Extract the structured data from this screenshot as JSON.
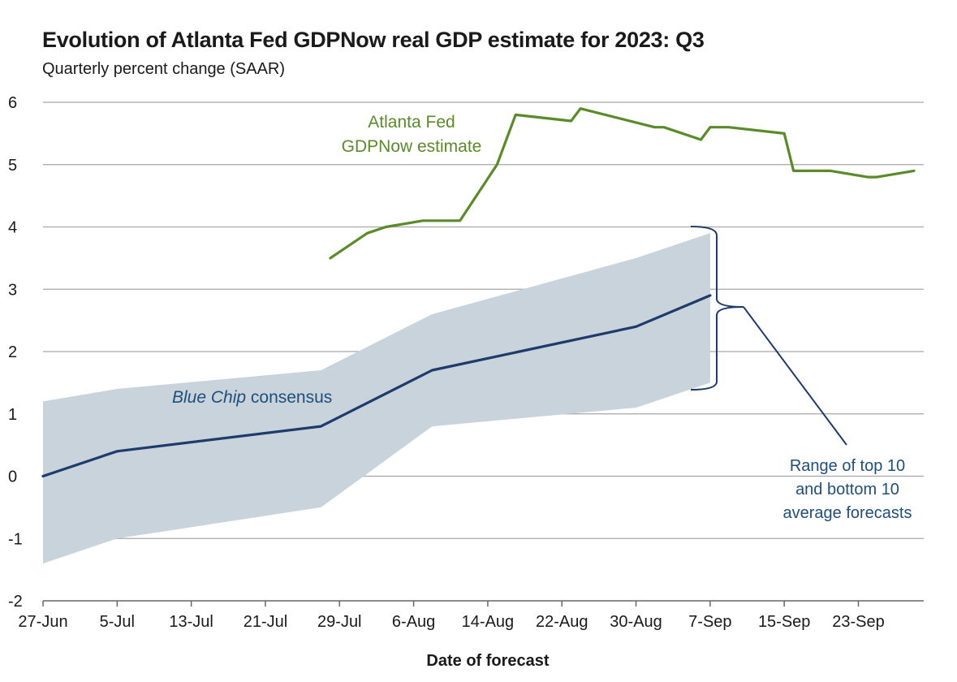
{
  "chart_data": {
    "type": "line",
    "title": "Evolution of Atlanta Fed GDPNow real GDP estimate for 2023: Q3",
    "subtitle": "Quarterly percent change (SAAR)",
    "xlabel": "Date of forecast",
    "ylabel": "",
    "ylim": [
      -2,
      6
    ],
    "yticks": [
      -2,
      -1,
      0,
      1,
      2,
      3,
      4,
      5,
      6
    ],
    "xlim": [
      0,
      94
    ],
    "xticks": [
      {
        "day": 0,
        "label": "27-Jun"
      },
      {
        "day": 8,
        "label": "5-Jul"
      },
      {
        "day": 16,
        "label": "13-Jul"
      },
      {
        "day": 24,
        "label": "21-Jul"
      },
      {
        "day": 32,
        "label": "29-Jul"
      },
      {
        "day": 40,
        "label": "6-Aug"
      },
      {
        "day": 48,
        "label": "14-Aug"
      },
      {
        "day": 56,
        "label": "22-Aug"
      },
      {
        "day": 64,
        "label": "30-Aug"
      },
      {
        "day": 72,
        "label": "7-Sep"
      },
      {
        "day": 80,
        "label": "15-Sep"
      },
      {
        "day": 88,
        "label": "23-Sep"
      }
    ],
    "grid": true,
    "series": [
      {
        "name": "Atlanta Fed GDPNow estimate",
        "color": "#5b8a2a",
        "x": [
          31,
          35,
          37,
          41,
          45,
          49,
          51,
          57,
          58,
          66,
          67,
          71,
          72,
          74,
          80,
          81,
          84,
          85,
          89,
          90,
          94
        ],
        "y": [
          3.5,
          3.9,
          4.0,
          4.1,
          4.1,
          5.0,
          5.8,
          5.7,
          5.9,
          5.6,
          5.6,
          5.4,
          5.6,
          5.6,
          5.5,
          4.9,
          4.9,
          4.9,
          4.8,
          4.8,
          4.9
        ]
      },
      {
        "name": "Blue Chip consensus",
        "color": "#1f3b6b",
        "x": [
          0,
          8,
          30,
          42,
          64,
          72
        ],
        "y": [
          0.0,
          0.4,
          0.8,
          1.7,
          2.4,
          2.9
        ]
      }
    ],
    "band": {
      "name": "Range of top 10 and bottom 10 average forecasts",
      "color": "#c8d3db",
      "x": [
        0,
        8,
        30,
        42,
        64,
        72
      ],
      "upper": [
        1.2,
        1.4,
        1.7,
        2.6,
        3.5,
        3.9
      ],
      "lower": [
        -1.4,
        -1.0,
        -0.5,
        0.8,
        1.1,
        1.5
      ]
    },
    "annotations": {
      "gdpnow_line1": "Atlanta Fed",
      "gdpnow_line2": "GDPNow estimate",
      "bluechip_italic": "Blue Chip",
      "bluechip_rest": " consensus",
      "range_line1": "Range of top 10",
      "range_line2": "and bottom 10",
      "range_line3": "average forecasts"
    }
  }
}
